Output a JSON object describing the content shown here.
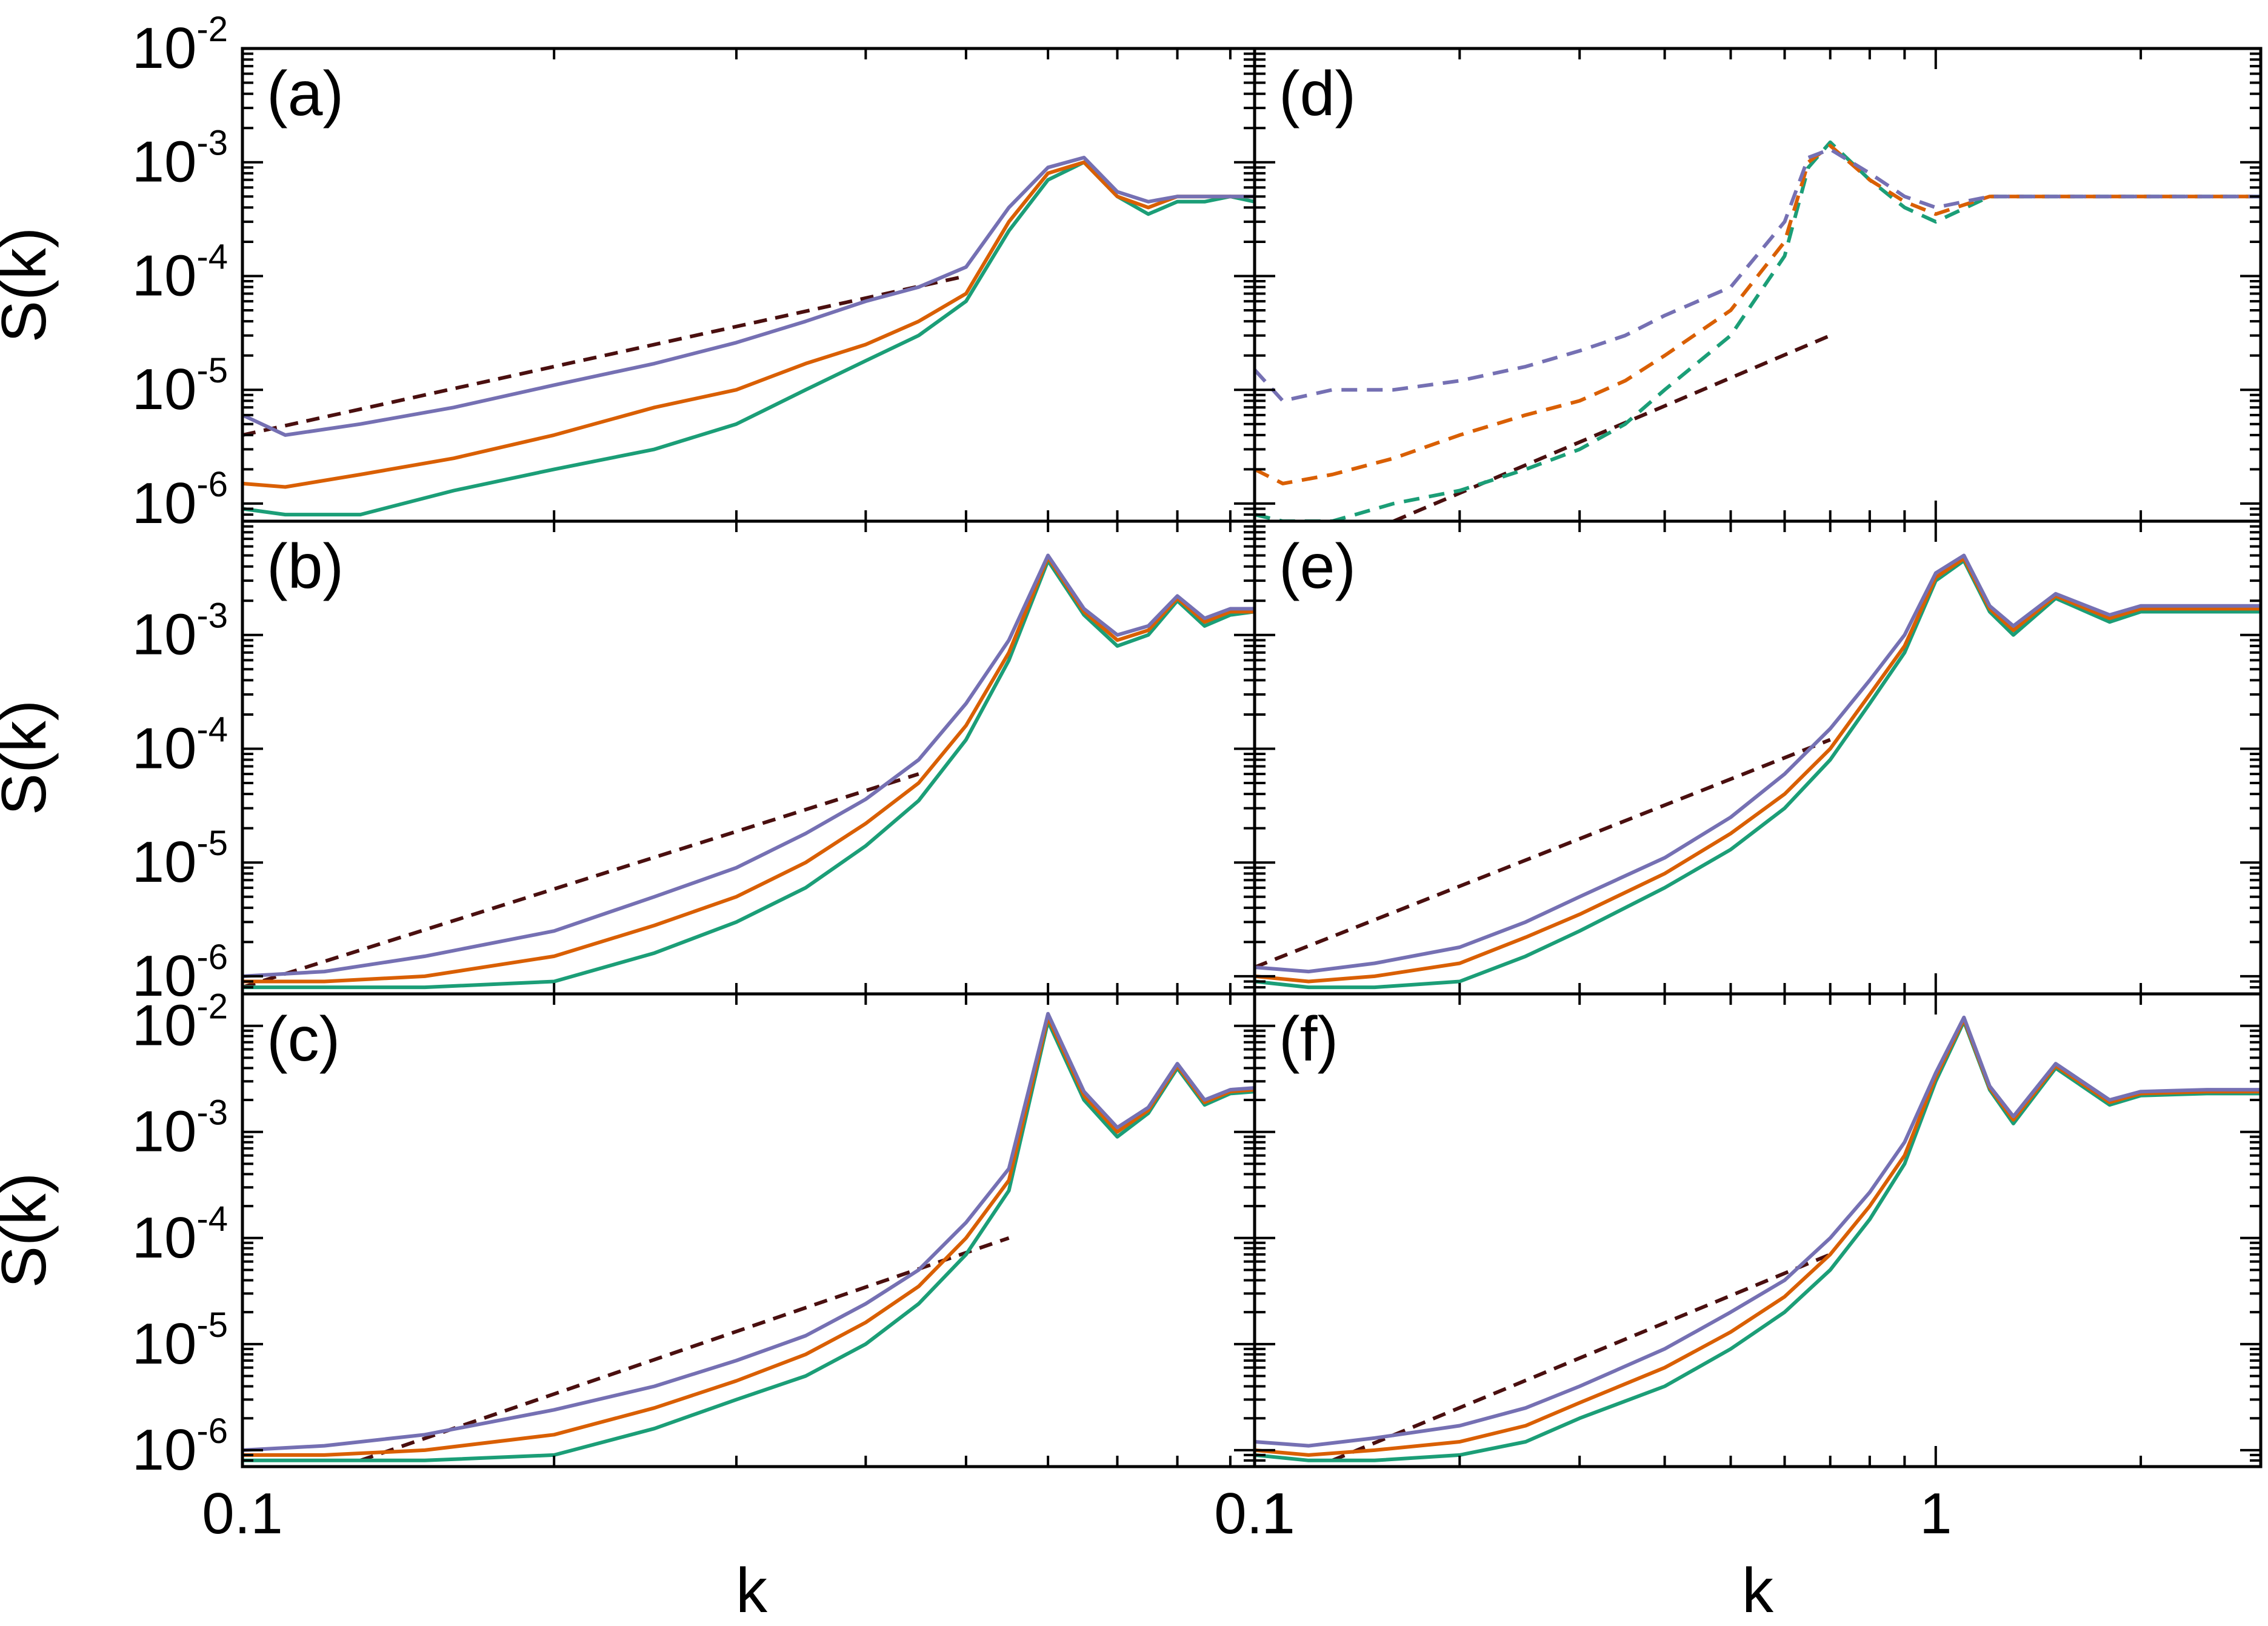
{
  "figure": {
    "xlabel_left": "k",
    "xlabel_right": "k",
    "ylabel": "S(k)",
    "x_ticklabels": [
      "0.1",
      "1"
    ],
    "colors": {
      "green": "#1b9e77",
      "orange": "#d95f02",
      "purple": "#7570b3",
      "dashed": "#4a0f0f",
      "axes": "#000000"
    }
  },
  "chart_data": [
    {
      "type": "line",
      "panel": "(a)",
      "label": "(a)",
      "xscale": "log",
      "yscale": "log",
      "xlim": [
        0.1,
        0.95
      ],
      "ylim": [
        7e-07,
        0.01
      ],
      "ytick_exps": [
        "-6",
        "-5",
        "-4",
        "-3",
        "-2"
      ],
      "ylabel": "S(k)",
      "xlabel": "",
      "linestyle": "solid",
      "series": [
        {
          "name": "green",
          "color": "#1b9e77",
          "k": [
            0.1,
            0.11,
            0.13,
            0.16,
            0.2,
            0.25,
            0.3,
            0.35,
            0.4,
            0.45,
            0.5,
            0.55,
            0.6,
            0.65,
            0.7,
            0.75,
            0.8,
            0.85,
            0.9,
            0.95
          ],
          "s": [
            9e-07,
            8e-07,
            8e-07,
            1.3e-06,
            2e-06,
            3e-06,
            5e-06,
            1e-05,
            1.8e-05,
            3e-05,
            6e-05,
            0.00025,
            0.0007,
            0.001,
            0.0005,
            0.00035,
            0.00045,
            0.00045,
            0.0005,
            0.00045
          ]
        },
        {
          "name": "orange",
          "color": "#d95f02",
          "k": [
            0.1,
            0.11,
            0.13,
            0.16,
            0.2,
            0.25,
            0.3,
            0.35,
            0.4,
            0.45,
            0.5,
            0.55,
            0.6,
            0.65,
            0.7,
            0.75,
            0.8,
            0.85,
            0.9,
            0.95
          ],
          "s": [
            1.5e-06,
            1.4e-06,
            1.8e-06,
            2.5e-06,
            4e-06,
            7e-06,
            1e-05,
            1.7e-05,
            2.5e-05,
            4e-05,
            7e-05,
            0.0003,
            0.0008,
            0.001,
            0.0005,
            0.0004,
            0.0005,
            0.0005,
            0.0005,
            0.0005
          ]
        },
        {
          "name": "purple",
          "color": "#7570b3",
          "k": [
            0.1,
            0.11,
            0.13,
            0.16,
            0.2,
            0.25,
            0.3,
            0.35,
            0.4,
            0.45,
            0.5,
            0.55,
            0.6,
            0.65,
            0.7,
            0.75,
            0.8,
            0.85,
            0.9,
            0.95
          ],
          "s": [
            6e-06,
            4e-06,
            5e-06,
            7e-06,
            1.1e-05,
            1.7e-05,
            2.6e-05,
            4e-05,
            6e-05,
            8e-05,
            0.00012,
            0.0004,
            0.0009,
            0.0011,
            0.00055,
            0.00045,
            0.0005,
            0.0005,
            0.0005,
            0.0005
          ]
        }
      ],
      "guide": {
        "linestyle": "dashed",
        "k": [
          0.1,
          0.5
        ],
        "s": [
          4e-06,
          0.0001
        ]
      }
    },
    {
      "type": "line",
      "panel": "(b)",
      "label": "(b)",
      "xscale": "log",
      "yscale": "log",
      "xlim": [
        0.1,
        0.95
      ],
      "ylim": [
        7e-07,
        0.01
      ],
      "ytick_exps": [
        "-6",
        "-5",
        "-4",
        "-3"
      ],
      "ylabel": "S(k)",
      "xlabel": "",
      "linestyle": "solid",
      "series": [
        {
          "name": "green",
          "color": "#1b9e77",
          "k": [
            0.1,
            0.12,
            0.15,
            0.2,
            0.25,
            0.3,
            0.35,
            0.4,
            0.45,
            0.5,
            0.55,
            0.6,
            0.65,
            0.7,
            0.75,
            0.8,
            0.85,
            0.9,
            0.95
          ],
          "s": [
            8e-07,
            8e-07,
            8e-07,
            9e-07,
            1.6e-06,
            3e-06,
            6e-06,
            1.4e-05,
            3.5e-05,
            0.00012,
            0.0006,
            0.0045,
            0.0015,
            0.0008,
            0.001,
            0.002,
            0.0012,
            0.0015,
            0.0016
          ]
        },
        {
          "name": "orange",
          "color": "#d95f02",
          "k": [
            0.1,
            0.12,
            0.15,
            0.2,
            0.25,
            0.3,
            0.35,
            0.4,
            0.45,
            0.5,
            0.55,
            0.6,
            0.65,
            0.7,
            0.75,
            0.8,
            0.85,
            0.9,
            0.95
          ],
          "s": [
            9e-07,
            9e-07,
            1e-06,
            1.5e-06,
            2.8e-06,
            5e-06,
            1e-05,
            2.2e-05,
            5e-05,
            0.00016,
            0.0007,
            0.0048,
            0.0016,
            0.0009,
            0.0011,
            0.0021,
            0.0013,
            0.0016,
            0.0016
          ]
        },
        {
          "name": "purple",
          "color": "#7570b3",
          "k": [
            0.1,
            0.12,
            0.15,
            0.2,
            0.25,
            0.3,
            0.35,
            0.4,
            0.45,
            0.5,
            0.55,
            0.6,
            0.65,
            0.7,
            0.75,
            0.8,
            0.85,
            0.9,
            0.95
          ],
          "s": [
            1e-06,
            1.1e-06,
            1.5e-06,
            2.5e-06,
            5e-06,
            9e-06,
            1.8e-05,
            3.6e-05,
            8e-05,
            0.00025,
            0.0009,
            0.005,
            0.0017,
            0.001,
            0.0012,
            0.0022,
            0.0014,
            0.0017,
            0.0017
          ]
        }
      ],
      "guide": {
        "linestyle": "dashed",
        "k": [
          0.1,
          0.45
        ],
        "s": [
          8e-07,
          6e-05
        ]
      }
    },
    {
      "type": "line",
      "panel": "(c)",
      "label": "(c)",
      "xscale": "log",
      "yscale": "log",
      "xlim": [
        0.1,
        0.95
      ],
      "ylim": [
        7e-07,
        0.02
      ],
      "ytick_exps": [
        "-6",
        "-5",
        "-4",
        "-3",
        "-2"
      ],
      "ylabel": "S(k)",
      "xlabel": "k",
      "linestyle": "solid",
      "series": [
        {
          "name": "green",
          "color": "#1b9e77",
          "k": [
            0.1,
            0.12,
            0.15,
            0.2,
            0.25,
            0.3,
            0.35,
            0.4,
            0.45,
            0.5,
            0.55,
            0.6,
            0.65,
            0.7,
            0.75,
            0.8,
            0.85,
            0.9,
            0.95
          ],
          "s": [
            8e-07,
            8e-07,
            8e-07,
            9e-07,
            1.6e-06,
            3e-06,
            5e-06,
            1e-05,
            2.4e-05,
            7e-05,
            0.00028,
            0.011,
            0.002,
            0.0009,
            0.0015,
            0.004,
            0.0018,
            0.0023,
            0.0024
          ]
        },
        {
          "name": "orange",
          "color": "#d95f02",
          "k": [
            0.1,
            0.12,
            0.15,
            0.2,
            0.25,
            0.3,
            0.35,
            0.4,
            0.45,
            0.5,
            0.55,
            0.6,
            0.65,
            0.7,
            0.75,
            0.8,
            0.85,
            0.9,
            0.95
          ],
          "s": [
            9e-07,
            9e-07,
            1e-06,
            1.4e-06,
            2.5e-06,
            4.5e-06,
            8e-06,
            1.6e-05,
            3.5e-05,
            0.0001,
            0.00035,
            0.012,
            0.0022,
            0.001,
            0.0016,
            0.0042,
            0.0019,
            0.0024,
            0.0025
          ]
        },
        {
          "name": "purple",
          "color": "#7570b3",
          "k": [
            0.1,
            0.12,
            0.15,
            0.2,
            0.25,
            0.3,
            0.35,
            0.4,
            0.45,
            0.5,
            0.55,
            0.6,
            0.65,
            0.7,
            0.75,
            0.8,
            0.85,
            0.9,
            0.95
          ],
          "s": [
            1e-06,
            1.1e-06,
            1.4e-06,
            2.4e-06,
            4e-06,
            7e-06,
            1.2e-05,
            2.4e-05,
            5e-05,
            0.00014,
            0.00045,
            0.013,
            0.0024,
            0.0011,
            0.0017,
            0.0044,
            0.002,
            0.0025,
            0.0026
          ]
        }
      ],
      "guide": {
        "linestyle": "dashed",
        "k": [
          0.13,
          0.55
        ],
        "s": [
          8e-07,
          0.0001
        ]
      }
    },
    {
      "type": "line",
      "panel": "(d)",
      "label": "(d)",
      "xscale": "log",
      "yscale": "log",
      "xlim": [
        0.1,
        3.0
      ],
      "ylim": [
        7e-07,
        0.01
      ],
      "ytick_exps": [],
      "ylabel": "",
      "xlabel": "",
      "linestyle": "dashed",
      "series": [
        {
          "name": "green",
          "color": "#1b9e77",
          "k": [
            0.1,
            0.11,
            0.13,
            0.16,
            0.2,
            0.25,
            0.3,
            0.35,
            0.4,
            0.5,
            0.6,
            0.65,
            0.7,
            0.8,
            0.9,
            1.0,
            1.2,
            1.5,
            2.0,
            2.5,
            3.0
          ],
          "s": [
            8e-07,
            7e-07,
            7e-07,
            1e-06,
            1.3e-06,
            2e-06,
            3e-06,
            5e-06,
            1e-05,
            3e-05,
            0.00015,
            0.0009,
            0.0015,
            0.0007,
            0.0004,
            0.0003,
            0.0005,
            0.0005,
            0.0005,
            0.0005,
            0.0005
          ]
        },
        {
          "name": "orange",
          "color": "#d95f02",
          "k": [
            0.1,
            0.11,
            0.13,
            0.16,
            0.2,
            0.25,
            0.3,
            0.35,
            0.4,
            0.5,
            0.6,
            0.65,
            0.7,
            0.8,
            0.9,
            1.0,
            1.2,
            1.5,
            2.0,
            2.5,
            3.0
          ],
          "s": [
            2e-06,
            1.5e-06,
            1.8e-06,
            2.5e-06,
            4e-06,
            6e-06,
            8e-06,
            1.2e-05,
            2e-05,
            5e-05,
            0.0002,
            0.001,
            0.0014,
            0.0007,
            0.00045,
            0.00035,
            0.0005,
            0.0005,
            0.0005,
            0.0005,
            0.0005
          ]
        },
        {
          "name": "purple",
          "color": "#7570b3",
          "k": [
            0.1,
            0.11,
            0.13,
            0.16,
            0.2,
            0.25,
            0.3,
            0.35,
            0.4,
            0.5,
            0.6,
            0.65,
            0.7,
            0.8,
            0.9,
            1.0,
            1.2,
            1.5,
            2.0,
            2.5,
            3.0
          ],
          "s": [
            1.5e-05,
            8e-06,
            1e-05,
            1e-05,
            1.2e-05,
            1.6e-05,
            2.2e-05,
            3e-05,
            4.5e-05,
            8e-05,
            0.0003,
            0.0011,
            0.0013,
            0.0008,
            0.0005,
            0.0004,
            0.0005,
            0.0005,
            0.0005,
            0.0005,
            0.0005
          ]
        }
      ],
      "guide": {
        "linestyle": "dashed",
        "k": [
          0.16,
          0.7
        ],
        "s": [
          7e-07,
          3e-05
        ]
      }
    },
    {
      "type": "line",
      "panel": "(e)",
      "label": "(e)",
      "xscale": "log",
      "yscale": "log",
      "xlim": [
        0.1,
        3.0
      ],
      "ylim": [
        7e-07,
        0.01
      ],
      "ytick_exps": [],
      "ylabel": "",
      "xlabel": "",
      "linestyle": "solid",
      "series": [
        {
          "name": "green",
          "color": "#1b9e77",
          "k": [
            0.1,
            0.12,
            0.15,
            0.2,
            0.25,
            0.3,
            0.4,
            0.5,
            0.6,
            0.7,
            0.8,
            0.9,
            1.0,
            1.1,
            1.2,
            1.3,
            1.5,
            1.8,
            2.0,
            2.5,
            3.0
          ],
          "s": [
            9e-07,
            8e-07,
            8e-07,
            9e-07,
            1.5e-06,
            2.5e-06,
            6e-06,
            1.3e-05,
            3e-05,
            8e-05,
            0.00025,
            0.0007,
            0.003,
            0.0045,
            0.0016,
            0.001,
            0.0021,
            0.0013,
            0.0016,
            0.0016,
            0.0016
          ]
        },
        {
          "name": "orange",
          "color": "#d95f02",
          "k": [
            0.1,
            0.12,
            0.15,
            0.2,
            0.25,
            0.3,
            0.4,
            0.5,
            0.6,
            0.7,
            0.8,
            0.9,
            1.0,
            1.1,
            1.2,
            1.3,
            1.5,
            1.8,
            2.0,
            2.5,
            3.0
          ],
          "s": [
            1e-06,
            9e-07,
            1e-06,
            1.3e-06,
            2.2e-06,
            3.5e-06,
            8e-06,
            1.8e-05,
            4e-05,
            0.0001,
            0.0003,
            0.0008,
            0.0032,
            0.0047,
            0.0017,
            0.0011,
            0.0022,
            0.0014,
            0.0017,
            0.0017,
            0.0017
          ]
        },
        {
          "name": "purple",
          "color": "#7570b3",
          "k": [
            0.1,
            0.12,
            0.15,
            0.2,
            0.25,
            0.3,
            0.4,
            0.5,
            0.6,
            0.7,
            0.8,
            0.9,
            1.0,
            1.1,
            1.2,
            1.3,
            1.5,
            1.8,
            2.0,
            2.5,
            3.0
          ],
          "s": [
            1.2e-06,
            1.1e-06,
            1.3e-06,
            1.8e-06,
            3e-06,
            5e-06,
            1.1e-05,
            2.5e-05,
            6e-05,
            0.00015,
            0.0004,
            0.001,
            0.0035,
            0.005,
            0.0018,
            0.0012,
            0.0023,
            0.0015,
            0.0018,
            0.0018,
            0.0018
          ]
        }
      ],
      "guide": {
        "linestyle": "dashed",
        "k": [
          0.1,
          0.7
        ],
        "s": [
          1.2e-06,
          0.00012
        ]
      }
    },
    {
      "type": "line",
      "panel": "(f)",
      "label": "(f)",
      "xscale": "log",
      "yscale": "log",
      "xlim": [
        0.1,
        3.0
      ],
      "ylim": [
        7e-07,
        0.02
      ],
      "ytick_exps": [],
      "ylabel": "",
      "xlabel": "k",
      "linestyle": "solid",
      "series": [
        {
          "name": "green",
          "color": "#1b9e77",
          "k": [
            0.1,
            0.12,
            0.15,
            0.2,
            0.25,
            0.3,
            0.4,
            0.5,
            0.6,
            0.7,
            0.8,
            0.9,
            1.0,
            1.1,
            1.2,
            1.3,
            1.5,
            1.8,
            2.0,
            2.5,
            3.0
          ],
          "s": [
            9e-07,
            8e-07,
            8e-07,
            9e-07,
            1.2e-06,
            2e-06,
            4e-06,
            9e-06,
            2e-05,
            5e-05,
            0.00015,
            0.0005,
            0.003,
            0.011,
            0.0025,
            0.0012,
            0.004,
            0.0018,
            0.0022,
            0.0023,
            0.0023
          ]
        },
        {
          "name": "orange",
          "color": "#d95f02",
          "k": [
            0.1,
            0.12,
            0.15,
            0.2,
            0.25,
            0.3,
            0.4,
            0.5,
            0.6,
            0.7,
            0.8,
            0.9,
            1.0,
            1.1,
            1.2,
            1.3,
            1.5,
            1.8,
            2.0,
            2.5,
            3.0
          ],
          "s": [
            1e-06,
            9e-07,
            1e-06,
            1.2e-06,
            1.7e-06,
            2.8e-06,
            6e-06,
            1.3e-05,
            2.8e-05,
            7e-05,
            0.0002,
            0.0006,
            0.0033,
            0.0115,
            0.0026,
            0.0013,
            0.0042,
            0.0019,
            0.0023,
            0.0024,
            0.0024
          ]
        },
        {
          "name": "purple",
          "color": "#7570b3",
          "k": [
            0.1,
            0.12,
            0.15,
            0.2,
            0.25,
            0.3,
            0.4,
            0.5,
            0.6,
            0.7,
            0.8,
            0.9,
            1.0,
            1.1,
            1.2,
            1.3,
            1.5,
            1.8,
            2.0,
            2.5,
            3.0
          ],
          "s": [
            1.2e-06,
            1.1e-06,
            1.3e-06,
            1.7e-06,
            2.5e-06,
            4e-06,
            9e-06,
            2e-05,
            4e-05,
            0.0001,
            0.00027,
            0.0008,
            0.0036,
            0.012,
            0.0027,
            0.0014,
            0.0044,
            0.002,
            0.0024,
            0.0025,
            0.0025
          ]
        }
      ],
      "guide": {
        "linestyle": "dashed",
        "k": [
          0.13,
          0.7
        ],
        "s": [
          8e-07,
          7e-05
        ]
      }
    }
  ]
}
